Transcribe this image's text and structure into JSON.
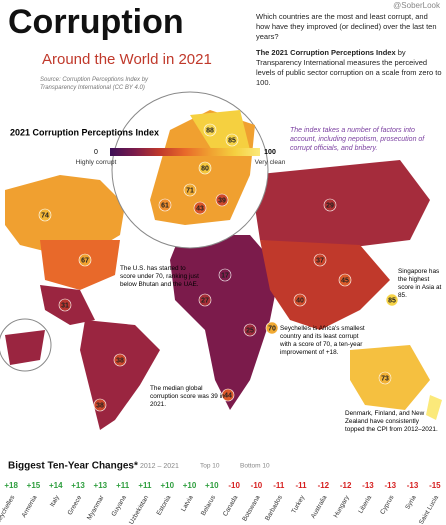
{
  "header": {
    "title": "Corruption",
    "subtitle": "Around the World in 2021",
    "source": "Source: Corruption Perceptions Index by Transparency International (CC BY 4.0)",
    "handle": "@SoberLook",
    "question": "Which countries are the most and least corrupt, and how have they improved (or declined) over the last ten years?",
    "intro_bold": "The 2021 Corruption Perceptions Index",
    "intro_rest": "by Transparency International measures the perceived levels of public sector corruption on a scale from zero to 100.",
    "note": "The index takes a number of factors into account, including nepotism, prosecution of corrupt officials, and bribery."
  },
  "legend": {
    "title": "2021 Corruption Perceptions Index",
    "min": 0,
    "min_label": "Highly corrupt",
    "max": 100,
    "max_label": "Very clean",
    "colors": [
      "#3d0f57",
      "#7b1b4b",
      "#c0392b",
      "#e8692a",
      "#f0a030",
      "#f5d040",
      "#fbe97a"
    ]
  },
  "annotations": [
    "The U.S. has started to score under 70, ranking just below Bhutan and the UAE.",
    "Singapore has the highest score in Asia at 85.",
    "Seychelles is Africa's smallest country and its least corrupt with a score of 70, a ten-year improvement of +18.",
    "The median global corruption score was 39 in 2021.",
    "Denmark, Finland, and New Zealand have consistently topped the CPI from 2012–2021."
  ],
  "map_scores": [
    74,
    67,
    31,
    38,
    38,
    29,
    45,
    40,
    73,
    44,
    25,
    17,
    88,
    85,
    80,
    71,
    61,
    43,
    39,
    85,
    70,
    37,
    27
  ],
  "changes": {
    "title": "Biggest Ten-Year Changes*",
    "period": "2012 – 2021",
    "top_label": "Top 10",
    "bottom_label": "Bottom 10",
    "positive_color": "#2e9e3e",
    "negative_color": "#d62020",
    "items": [
      {
        "country": "Seychelles",
        "value": 18,
        "label": "+18"
      },
      {
        "country": "Armenia",
        "value": 15,
        "label": "+15"
      },
      {
        "country": "Italy",
        "value": 14,
        "label": "+14"
      },
      {
        "country": "Greece",
        "value": 13,
        "label": "+13"
      },
      {
        "country": "Myanmar",
        "value": 13,
        "label": "+13"
      },
      {
        "country": "Guyana",
        "value": 11,
        "label": "+11"
      },
      {
        "country": "Uzbekistan",
        "value": 11,
        "label": "+11"
      },
      {
        "country": "Estonia",
        "value": 10,
        "label": "+10"
      },
      {
        "country": "Latvia",
        "value": 10,
        "label": "+10"
      },
      {
        "country": "Belarus",
        "value": 10,
        "label": "+10"
      },
      {
        "country": "Canada",
        "value": -10
      },
      {
        "country": "Botswana",
        "value": -10
      },
      {
        "country": "Barbados",
        "value": -11
      },
      {
        "country": "Turkey",
        "value": -11
      },
      {
        "country": "Australia",
        "value": -12
      },
      {
        "country": "Hungary",
        "value": -12
      },
      {
        "country": "Liberia",
        "value": -13
      },
      {
        "country": "Cyprus",
        "value": -13
      },
      {
        "country": "Syria",
        "value": -13
      },
      {
        "country": "Saint Lucia",
        "value": -15
      }
    ]
  }
}
